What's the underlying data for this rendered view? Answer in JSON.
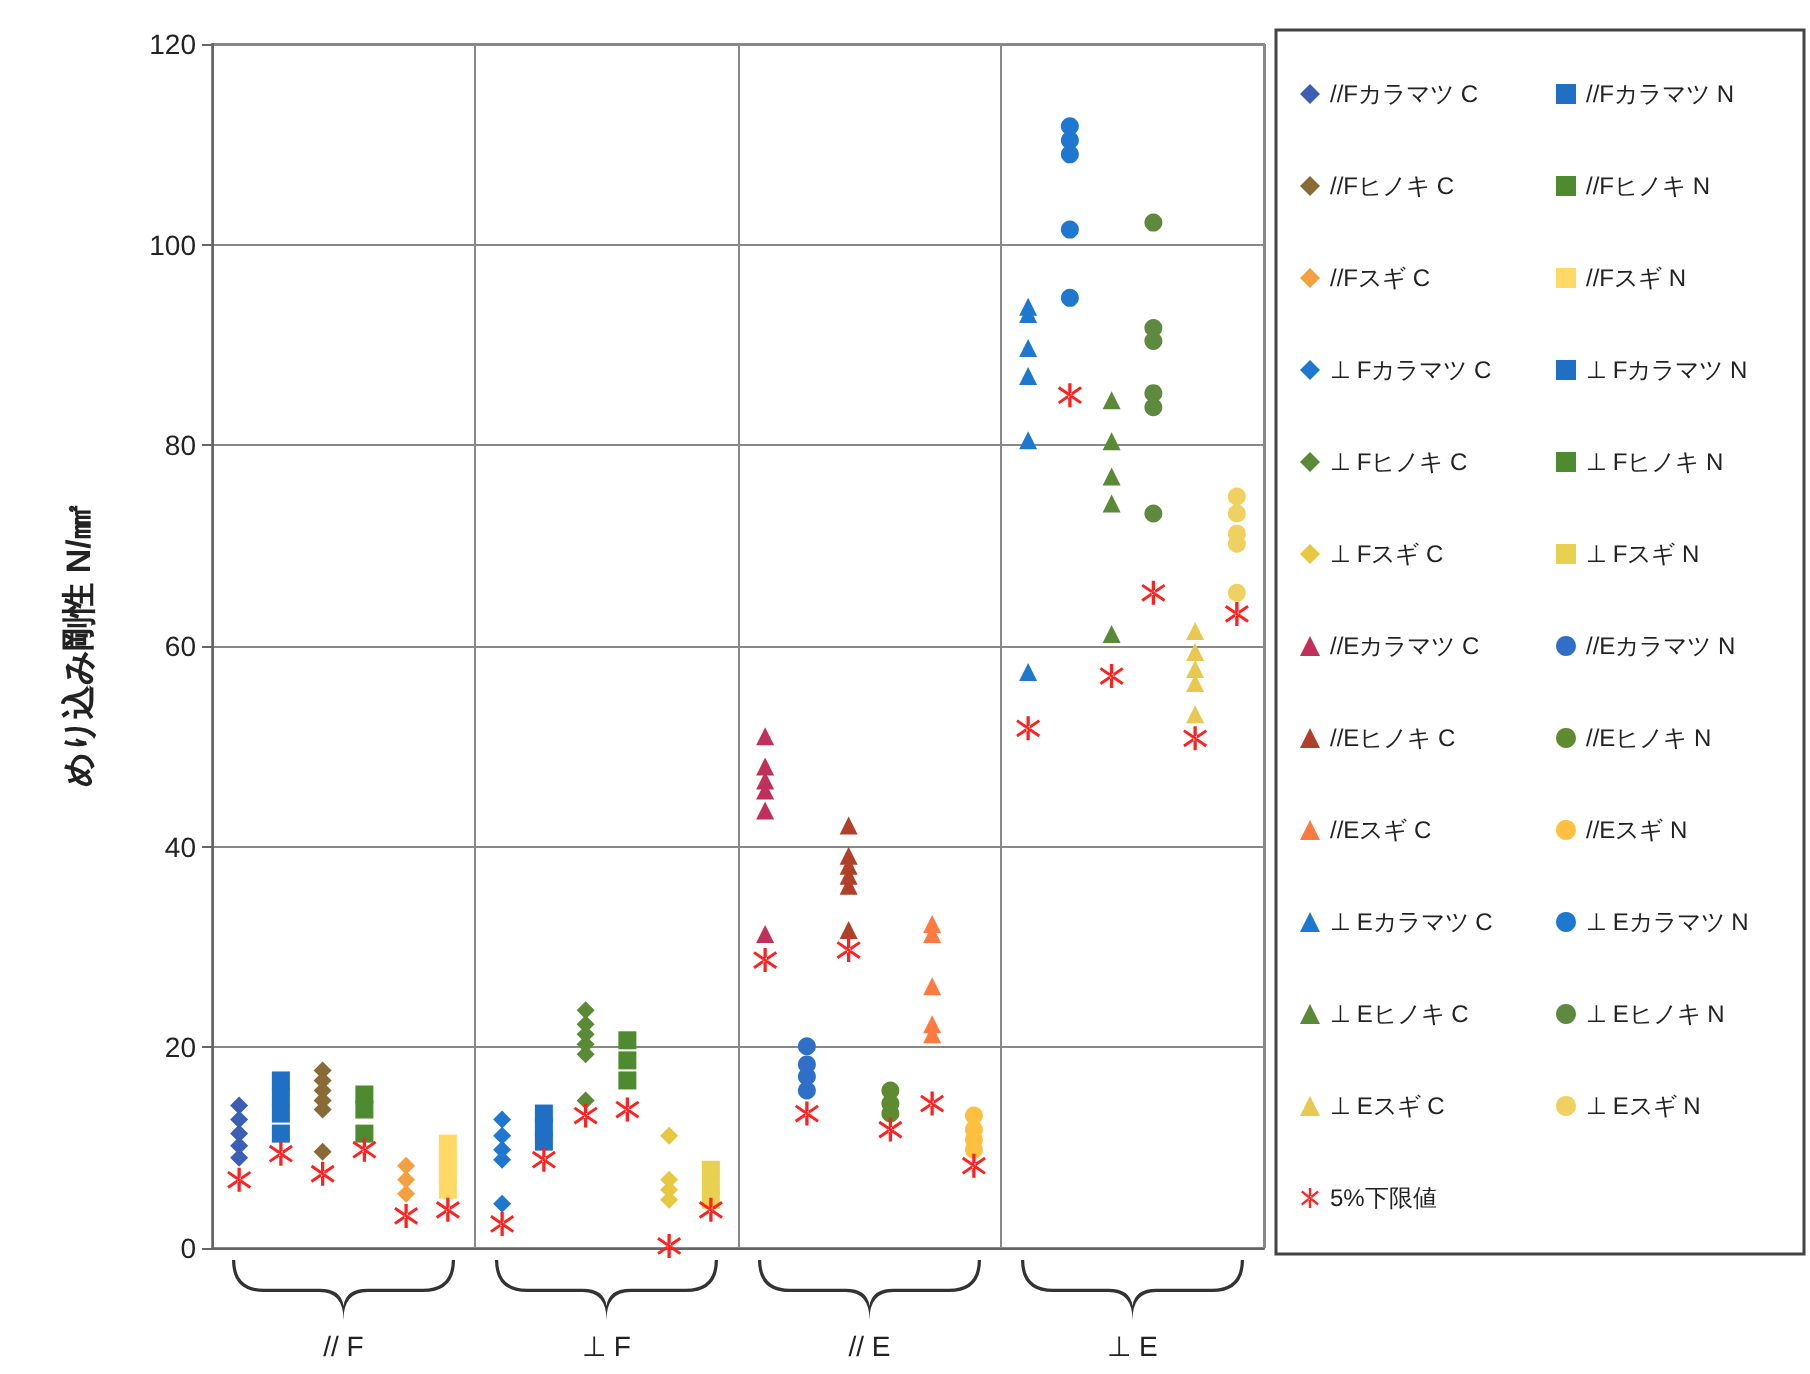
{
  "chart_data": {
    "type": "scatter",
    "ylabel": "めり込み剛性 N/㎟",
    "categories": [
      "// F",
      "⊥ F",
      "// E",
      "⊥ E"
    ],
    "ylim": [
      0,
      120
    ],
    "yticks": [
      0,
      20,
      40,
      60,
      80,
      100,
      120
    ],
    "grid": true,
    "legend": "right",
    "series": [
      {
        "name": "//Fカラマツ C",
        "marker": "diamond",
        "color": "#3a5fb5",
        "x": [
          "// F",
          "// F",
          "// F",
          "// F",
          "// F"
        ],
        "values": [
          14.2,
          12.8,
          11.4,
          10.2,
          9.0
        ]
      },
      {
        "name": "//Fカラマツ N",
        "marker": "square",
        "color": "#1f6fc5",
        "x": [
          "// F",
          "// F",
          "// F",
          "// F"
        ],
        "values": [
          16.7,
          15.1,
          13.4,
          11.4
        ]
      },
      {
        "name": "//Fヒノキ C",
        "marker": "diamond",
        "color": "#8a6a35",
        "x": [
          "// F",
          "// F",
          "// F",
          "// F",
          "// F",
          "// F"
        ],
        "values": [
          17.7,
          16.7,
          15.7,
          14.7,
          13.8,
          9.6
        ]
      },
      {
        "name": "//Fヒノキ N",
        "marker": "square",
        "color": "#4e8a30",
        "x": [
          "// F",
          "// F",
          "// F"
        ],
        "values": [
          15.3,
          13.8,
          11.4
        ]
      },
      {
        "name": "//Fスギ C",
        "marker": "diamond",
        "color": "#f5a040",
        "x": [
          "// F",
          "// F",
          "// F"
        ],
        "values": [
          8.2,
          6.8,
          5.4
        ]
      },
      {
        "name": "//Fスギ N",
        "marker": "square",
        "color": "#ffd966",
        "x": [
          "// F",
          "// F",
          "// F",
          "// F"
        ],
        "values": [
          10.4,
          8.8,
          7.2,
          5.8
        ]
      },
      {
        "name": "⊥ Fカラマツ C",
        "marker": "diamond",
        "color": "#1f78d0",
        "x": [
          "⊥ F",
          "⊥ F",
          "⊥ F",
          "⊥ F",
          "⊥ F"
        ],
        "values": [
          12.8,
          11.2,
          9.8,
          8.8,
          4.4
        ]
      },
      {
        "name": "⊥ Fカラマツ N",
        "marker": "square",
        "color": "#1f6fc5",
        "x": [
          "⊥ F",
          "⊥ F",
          "⊥ F"
        ],
        "values": [
          13.4,
          12.0,
          10.6
        ]
      },
      {
        "name": "⊥ Fヒノキ C",
        "marker": "diamond",
        "color": "#5a8a35",
        "x": [
          "⊥ F",
          "⊥ F",
          "⊥ F",
          "⊥ F",
          "⊥ F",
          "⊥ F"
        ],
        "values": [
          23.7,
          22.3,
          21.3,
          20.3,
          19.3,
          14.7
        ]
      },
      {
        "name": "⊥ Fヒノキ N",
        "marker": "square",
        "color": "#4e8a30",
        "x": [
          "⊥ F",
          "⊥ F",
          "⊥ F"
        ],
        "values": [
          20.7,
          18.7,
          16.7
        ]
      },
      {
        "name": "⊥ Fスギ C",
        "marker": "diamond",
        "color": "#e8c840",
        "x": [
          "⊥ F",
          "⊥ F",
          "⊥ F",
          "⊥ F"
        ],
        "values": [
          11.2,
          6.8,
          5.8,
          4.8
        ]
      },
      {
        "name": "⊥ Fスギ N",
        "marker": "square",
        "color": "#e8d050",
        "x": [
          "⊥ F",
          "⊥ F",
          "⊥ F"
        ],
        "values": [
          7.8,
          6.2,
          4.8
        ]
      },
      {
        "name": "//Eカラマツ C",
        "marker": "triangle",
        "color": "#c0305a",
        "x": [
          "// E",
          "// E",
          "// E",
          "// E",
          "// E",
          "// E"
        ],
        "values": [
          51.0,
          48.0,
          46.6,
          45.6,
          43.6,
          31.3
        ]
      },
      {
        "name": "//Eカラマツ N",
        "marker": "circle",
        "color": "#2f6fc8",
        "x": [
          "// E",
          "// E",
          "// E",
          "// E"
        ],
        "values": [
          20.1,
          18.3,
          17.1,
          15.7
        ]
      },
      {
        "name": "//Eヒノキ C",
        "marker": "triangle",
        "color": "#b0402a",
        "x": [
          "// E",
          "// E",
          "// E",
          "// E",
          "// E",
          "// E"
        ],
        "values": [
          42.1,
          39.1,
          38.1,
          37.1,
          36.1,
          31.7
        ]
      },
      {
        "name": "//Eヒノキ N",
        "marker": "circle",
        "color": "#5e8a30",
        "x": [
          "// E",
          "// E",
          "// E"
        ],
        "values": [
          15.7,
          14.4,
          13.4
        ]
      },
      {
        "name": "//Eスギ C",
        "marker": "triangle",
        "color": "#ff7a40",
        "x": [
          "// E",
          "// E",
          "// E",
          "// E",
          "// E"
        ],
        "values": [
          32.3,
          31.3,
          26.1,
          22.3,
          21.3
        ]
      },
      {
        "name": "//Eスギ N",
        "marker": "circle",
        "color": "#ffc040",
        "x": [
          "// E",
          "// E",
          "// E",
          "// E"
        ],
        "values": [
          13.2,
          11.8,
          10.8,
          9.8
        ]
      },
      {
        "name": "⊥ Eカラマツ C",
        "marker": "triangle",
        "color": "#1f78d0",
        "x": [
          "⊥ E",
          "⊥ E",
          "⊥ E",
          "⊥ E",
          "⊥ E",
          "⊥ E"
        ],
        "values": [
          93.8,
          93.1,
          89.7,
          86.9,
          80.5,
          57.4
        ]
      },
      {
        "name": "⊥ Eカラマツ N",
        "marker": "circle",
        "color": "#1f78d0",
        "x": [
          "⊥ E",
          "⊥ E",
          "⊥ E",
          "⊥ E",
          "⊥ E"
        ],
        "values": [
          111.8,
          110.4,
          109.0,
          101.5,
          94.7
        ]
      },
      {
        "name": "⊥ Eヒノキ C",
        "marker": "triangle",
        "color": "#5a8a35",
        "x": [
          "⊥ E",
          "⊥ E",
          "⊥ E",
          "⊥ E",
          "⊥ E"
        ],
        "values": [
          84.5,
          80.4,
          76.9,
          74.2,
          61.2
        ]
      },
      {
        "name": "⊥ Eヒノキ N",
        "marker": "circle",
        "color": "#5e8a40",
        "x": [
          "⊥ E",
          "⊥ E",
          "⊥ E",
          "⊥ E",
          "⊥ E",
          "⊥ E"
        ],
        "values": [
          102.2,
          91.7,
          90.4,
          85.2,
          83.8,
          73.2
        ]
      },
      {
        "name": "⊥ Eスギ C",
        "marker": "triangle",
        "color": "#e8c850",
        "x": [
          "⊥ E",
          "⊥ E",
          "⊥ E",
          "⊥ E",
          "⊥ E"
        ],
        "values": [
          61.5,
          59.4,
          57.7,
          56.3,
          53.2
        ]
      },
      {
        "name": "⊥ Eスギ N",
        "marker": "circle",
        "color": "#f0d060",
        "x": [
          "⊥ E",
          "⊥ E",
          "⊥ E",
          "⊥ E",
          "⊥ E"
        ],
        "values": [
          74.9,
          73.2,
          71.2,
          70.2,
          65.3
        ]
      },
      {
        "name": "5%下限値",
        "marker": "cross",
        "color": "#ff2020",
        "x": [
          "// F",
          "// F",
          "// F",
          "// F",
          "// F",
          "// F",
          "⊥ F",
          "⊥ F",
          "⊥ F",
          "⊥ F",
          "⊥ F",
          "⊥ F",
          "// E",
          "// E",
          "// E",
          "// E",
          "// E",
          "// E",
          "⊥ E",
          "⊥ E",
          "⊥ E",
          "⊥ E",
          "⊥ E",
          "⊥ E"
        ],
        "values": [
          6.8,
          9.4,
          7.4,
          9.8,
          3.2,
          3.8,
          2.4,
          8.8,
          13.2,
          13.8,
          0.2,
          3.8,
          28.7,
          13.4,
          29.7,
          11.8,
          14.4,
          8.2,
          51.8,
          85.0,
          57.0,
          65.3,
          50.8,
          63.2
        ]
      }
    ]
  }
}
